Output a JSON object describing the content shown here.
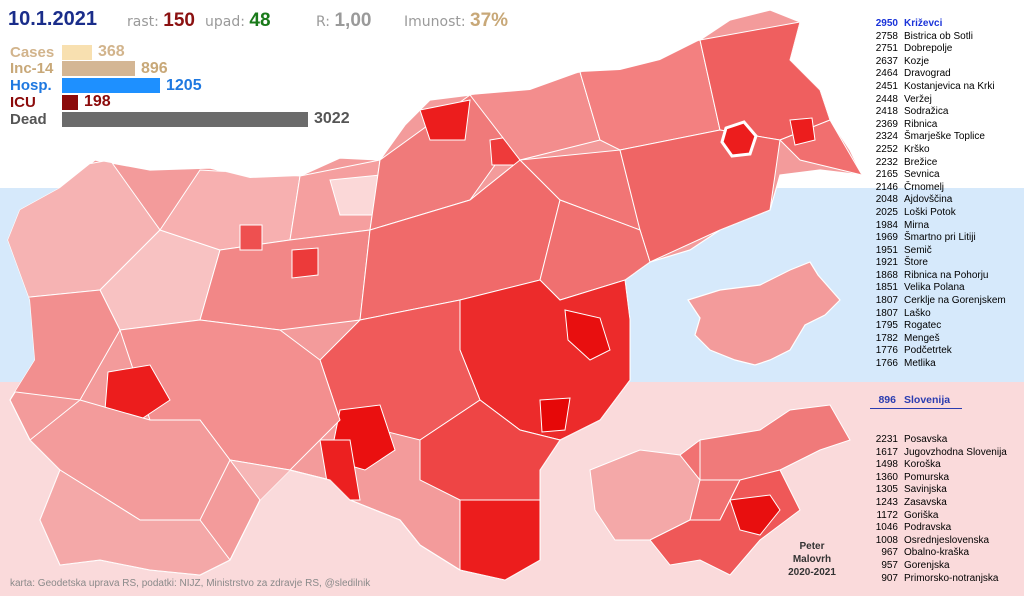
{
  "header": {
    "date": "10.1.2021",
    "rast_label": "rast:",
    "rast_value": "150",
    "upad_label": "upad:",
    "upad_value": "48",
    "r_label": "R:",
    "r_value": "1,00",
    "imunost_label": "Imunost:",
    "imunost_value": "37%"
  },
  "colors": {
    "rast": "#8b1111",
    "upad": "#1a7a1a",
    "r": "#9a9a9a",
    "imunost": "#c8a878",
    "map_light": "#f6b8b8",
    "map_mid": "#ef7777",
    "map_dark": "#ec1d1d"
  },
  "bars": [
    {
      "label": "Cases",
      "value": "368",
      "fraction": 0.1218,
      "color": "#f8e0b0",
      "label_color": "#d2b48c"
    },
    {
      "label": "Inc-14",
      "value": "896",
      "fraction": 0.2965,
      "color": "#d4b694",
      "label_color": "#c8a878"
    },
    {
      "label": "Hosp.",
      "value": "1205",
      "fraction": 0.3987,
      "color": "#1e90ff",
      "label_color": "#1e78e0"
    },
    {
      "label": "ICU",
      "value": "198",
      "fraction": 0.0655,
      "color": "#8b0a0a",
      "label_color": "#8b0a0a"
    },
    {
      "label": "Dead",
      "value": "3022",
      "fraction": 1.0,
      "color": "#6b6b6b",
      "label_color": "#555555"
    }
  ],
  "municipalities": [
    {
      "value": "2950",
      "name": "Križevci"
    },
    {
      "value": "2758",
      "name": "Bistrica ob Sotli"
    },
    {
      "value": "2751",
      "name": "Dobrepolje"
    },
    {
      "value": "2637",
      "name": "Kozje"
    },
    {
      "value": "2464",
      "name": "Dravograd"
    },
    {
      "value": "2451",
      "name": "Kostanjevica na Krki"
    },
    {
      "value": "2448",
      "name": "Veržej"
    },
    {
      "value": "2418",
      "name": "Sodražica"
    },
    {
      "value": "2369",
      "name": "Ribnica"
    },
    {
      "value": "2324",
      "name": "Šmarješke Toplice"
    },
    {
      "value": "2252",
      "name": "Krško"
    },
    {
      "value": "2232",
      "name": "Brežice"
    },
    {
      "value": "2165",
      "name": "Sevnica"
    },
    {
      "value": "2146",
      "name": "Črnomelj"
    },
    {
      "value": "2048",
      "name": "Ajdovščina"
    },
    {
      "value": "2025",
      "name": "Loški Potok"
    },
    {
      "value": "1984",
      "name": "Mirna"
    },
    {
      "value": "1969",
      "name": "Šmartno pri Litiji"
    },
    {
      "value": "1951",
      "name": "Semič"
    },
    {
      "value": "1921",
      "name": "Štore"
    },
    {
      "value": "1868",
      "name": "Ribnica na Pohorju"
    },
    {
      "value": "1851",
      "name": "Velika Polana"
    },
    {
      "value": "1807",
      "name": "Cerklje na Gorenjskem"
    },
    {
      "value": "1807",
      "name": "Laško"
    },
    {
      "value": "1795",
      "name": "Rogatec"
    },
    {
      "value": "1782",
      "name": "Mengeš"
    },
    {
      "value": "1776",
      "name": "Podčetrtek"
    },
    {
      "value": "1766",
      "name": "Metlika"
    }
  ],
  "slovenia": {
    "value": "896",
    "name": "Slovenija"
  },
  "regions": [
    {
      "value": "2231",
      "name": "Posavska"
    },
    {
      "value": "1617",
      "name": "Jugovzhodna Slovenija"
    },
    {
      "value": "1498",
      "name": "Koroška"
    },
    {
      "value": "1360",
      "name": "Pomurska"
    },
    {
      "value": "1305",
      "name": "Savinjska"
    },
    {
      "value": "1243",
      "name": "Zasavska"
    },
    {
      "value": "1172",
      "name": "Goriška"
    },
    {
      "value": "1046",
      "name": "Podravska"
    },
    {
      "value": "1008",
      "name": "Osrednjeslovenska"
    },
    {
      "value": "967",
      "name": "Obalno-kraška"
    },
    {
      "value": "957",
      "name": "Gorenjska"
    },
    {
      "value": "907",
      "name": "Primorsko-notranjska"
    }
  ],
  "credit": {
    "line1": "Peter",
    "line2": "Malovrh",
    "line3": "2020-2021"
  },
  "footer": "karta: Geodetska uprava RS,  podatki: NIJZ, Ministrstvo za zdravje RS, @sledilnik"
}
